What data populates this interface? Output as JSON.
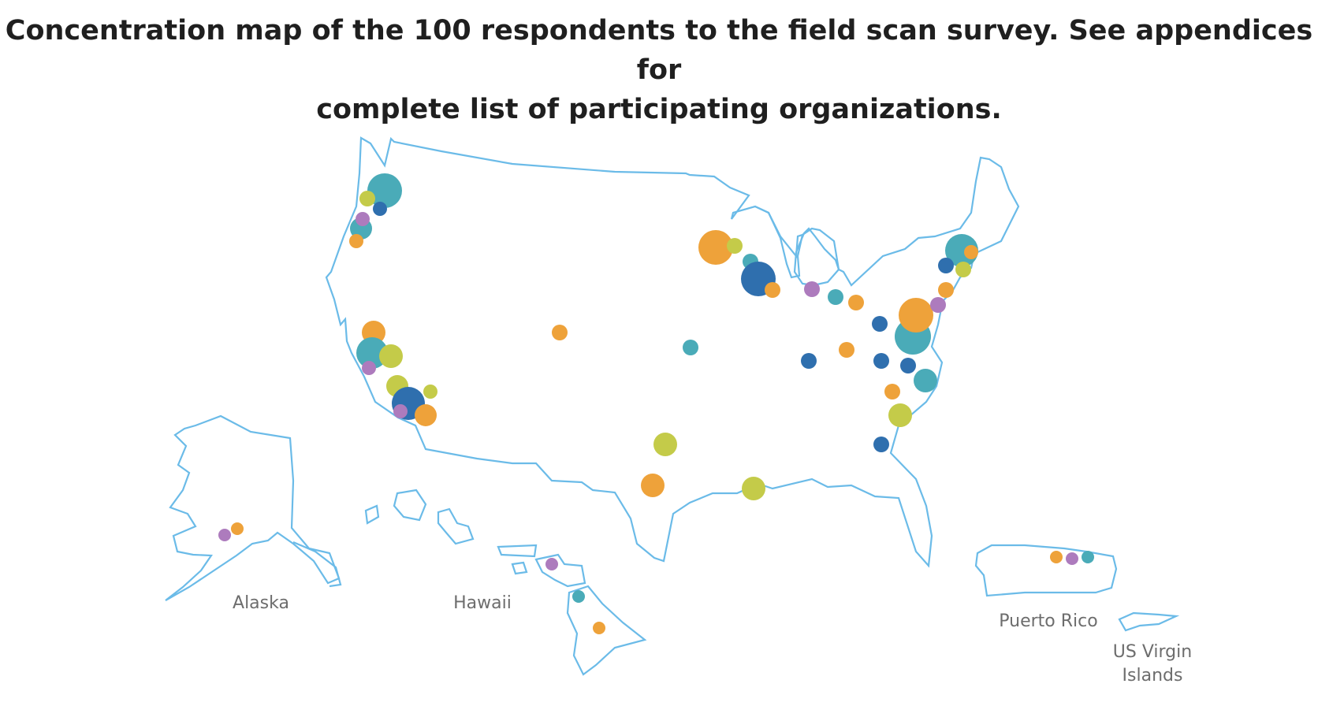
{
  "title": {
    "line1": "Concentration map of the 100 respondents to the field scan survey. See appendices for",
    "line2": "complete list of participating organizations."
  },
  "colors": {
    "outline": "#6bbbe8",
    "teal": "#4aabb8",
    "blue": "#2f6fae",
    "orange": "#eea23a",
    "yellow_green": "#c4cb49",
    "purple": "#ad7bbd",
    "label": "#6d6d6d"
  },
  "regions": {
    "alaska": "Alaska",
    "hawaii": "Hawaii",
    "puerto_rico": "Puerto Rico",
    "usvi_line1": "US Virgin",
    "usvi_line2": "Islands"
  }
}
